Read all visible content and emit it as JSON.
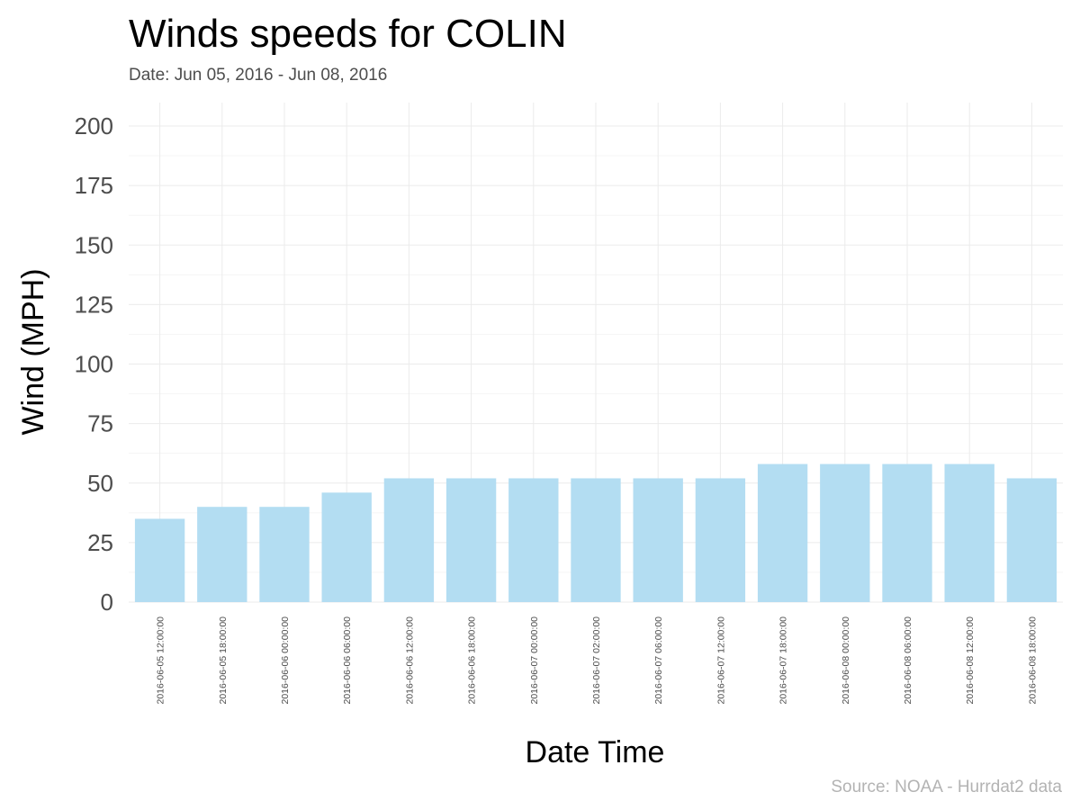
{
  "chart_data": {
    "type": "bar",
    "title": "Winds speeds for COLIN",
    "subtitle": "Date:  Jun 05, 2016 - Jun 08, 2016",
    "xlabel": "Date Time",
    "ylabel": "Wind (MPH)",
    "caption": "Source: NOAA - Hurrdat2 data",
    "ylim": [
      0,
      200
    ],
    "yticks": [
      0,
      25,
      50,
      75,
      100,
      125,
      150,
      175,
      200
    ],
    "grid": true,
    "bar_color": "#b3ddf2",
    "categories": [
      "2016-06-05 12:00:00",
      "2016-06-05 18:00:00",
      "2016-06-06 00:00:00",
      "2016-06-06 06:00:00",
      "2016-06-06 12:00:00",
      "2016-06-06 18:00:00",
      "2016-06-07 00:00:00",
      "2016-06-07 02:00:00",
      "2016-06-07 06:00:00",
      "2016-06-07 12:00:00",
      "2016-06-07 18:00:00",
      "2016-06-08 00:00:00",
      "2016-06-08 06:00:00",
      "2016-06-08 12:00:00",
      "2016-06-08 18:00:00"
    ],
    "values": [
      35,
      40,
      40,
      46,
      52,
      52,
      52,
      52,
      52,
      52,
      58,
      58,
      58,
      58,
      52
    ]
  }
}
